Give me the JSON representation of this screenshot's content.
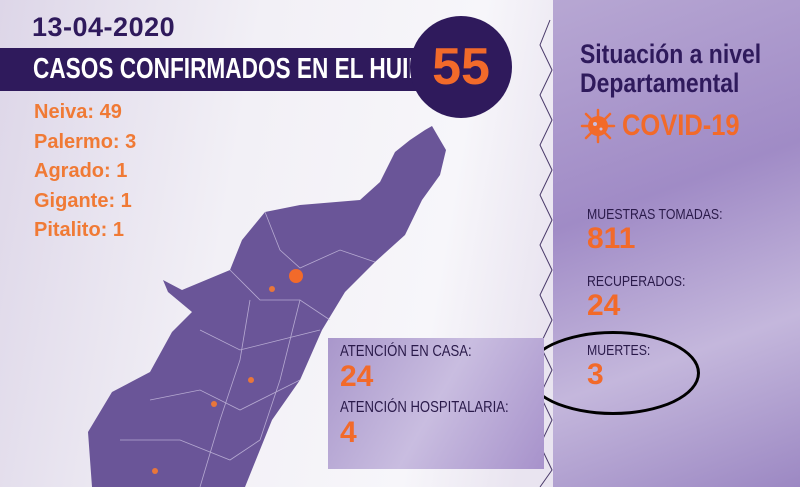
{
  "date": "13-04-2020",
  "headline": "CASOS CONFIRMADOS EN EL HUILA:",
  "total_cases": "55",
  "cities": [
    {
      "label": "Neiva: 49"
    },
    {
      "label": "Palermo: 3"
    },
    {
      "label": "Agrado: 1"
    },
    {
      "label": "Gigante: 1"
    },
    {
      "label": "Pitalito: 1"
    }
  ],
  "panel": {
    "title_line1": "Situación a nivel",
    "title_line2": "Departamental",
    "covid_label": "COVID-19",
    "icon": "virus-icon"
  },
  "stats": {
    "muestras_label": "MUESTRAS TOMADAS:",
    "muestras_value": "811",
    "recuperados_label": "RECUPERADOS:",
    "recuperados_value": "24",
    "muertes_label": "MUERTES:",
    "muertes_value": "3"
  },
  "attention": {
    "casa_label": "ATENCIÓN EN CASA:",
    "casa_value": "24",
    "hospital_label": "ATENCIÓN HOSPITALARIA:",
    "hospital_value": "4"
  },
  "colors": {
    "navy": "#2f1a5c",
    "orange": "#f26a2a",
    "map": "#6a5598"
  }
}
